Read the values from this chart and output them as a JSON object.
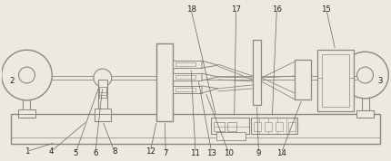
{
  "bg_color": "#ede8e0",
  "lc": "#8a8880",
  "dc": "#555550",
  "figsize": [
    4.31,
    1.78
  ],
  "dpi": 100,
  "xlim": [
    0,
    431
  ],
  "ylim": [
    0,
    178
  ]
}
